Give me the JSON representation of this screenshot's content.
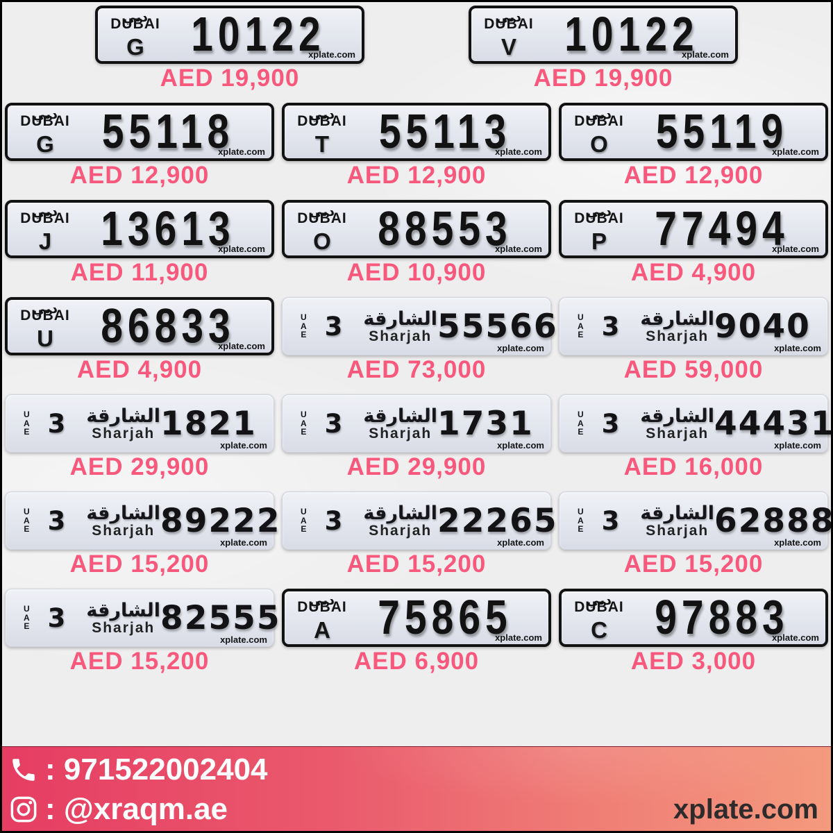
{
  "watermark": "xplate.com",
  "colors": {
    "price": "#f8587c",
    "plate_bg": "#e3e6ee",
    "footer_left": "#e63d62",
    "footer_right": "#f49a7e"
  },
  "dubai_logo": {
    "latin": "DUBAI",
    "arabic": "دبي"
  },
  "sharjah_header": {
    "arabic": "الشارقة",
    "latin": "Sharjah",
    "uae_letters": [
      "U",
      "A",
      "E"
    ]
  },
  "rows": [
    {
      "plates": [
        {
          "style": "dubai",
          "code": "G",
          "number": "10122",
          "price": "AED 19,900"
        },
        {
          "style": "dubai",
          "code": "V",
          "number": "10122",
          "price": "AED 19,900"
        }
      ]
    },
    {
      "plates": [
        {
          "style": "dubai",
          "code": "G",
          "number": "55118",
          "price": "AED 12,900"
        },
        {
          "style": "dubai",
          "code": "T",
          "number": "55113",
          "price": "AED 12,900"
        },
        {
          "style": "dubai",
          "code": "O",
          "number": "55119",
          "price": "AED 12,900"
        }
      ]
    },
    {
      "plates": [
        {
          "style": "dubai",
          "code": "J",
          "number": "13613",
          "price": "AED 11,900"
        },
        {
          "style": "dubai",
          "code": "O",
          "number": "88553",
          "price": "AED 10,900"
        },
        {
          "style": "dubai",
          "code": "P",
          "number": "77494",
          "price": "AED 4,900"
        }
      ]
    },
    {
      "plates": [
        {
          "style": "dubai",
          "code": "U",
          "number": "86833",
          "price": "AED 4,900"
        },
        {
          "style": "sharjah",
          "code": "3",
          "number": "55566",
          "price": "AED 73,000"
        },
        {
          "style": "sharjah",
          "code": "3",
          "number": "9040",
          "price": "AED 59,000"
        }
      ]
    },
    {
      "plates": [
        {
          "style": "sharjah",
          "code": "3",
          "number": "1821",
          "price": "AED 29,900"
        },
        {
          "style": "sharjah",
          "code": "3",
          "number": "1731",
          "price": "AED 29,900"
        },
        {
          "style": "sharjah",
          "code": "3",
          "number": "44431",
          "price": "AED 16,000"
        }
      ]
    },
    {
      "plates": [
        {
          "style": "sharjah",
          "code": "3",
          "number": "89222",
          "price": "AED 15,200"
        },
        {
          "style": "sharjah",
          "code": "3",
          "number": "22265",
          "price": "AED 15,200"
        },
        {
          "style": "sharjah",
          "code": "3",
          "number": "62888",
          "price": "AED 15,200"
        }
      ]
    },
    {
      "plates": [
        {
          "style": "sharjah",
          "code": "3",
          "number": "82555",
          "price": "AED 15,200"
        },
        {
          "style": "dubai",
          "code": "A",
          "number": "75865",
          "price": "AED 6,900"
        },
        {
          "style": "dubai",
          "code": "C",
          "number": "97883",
          "price": "AED 3,000"
        }
      ]
    }
  ],
  "footer": {
    "phone_label": ": 971522002404",
    "instagram_label": ": @xraqm.ae",
    "site": "xplate.com"
  }
}
